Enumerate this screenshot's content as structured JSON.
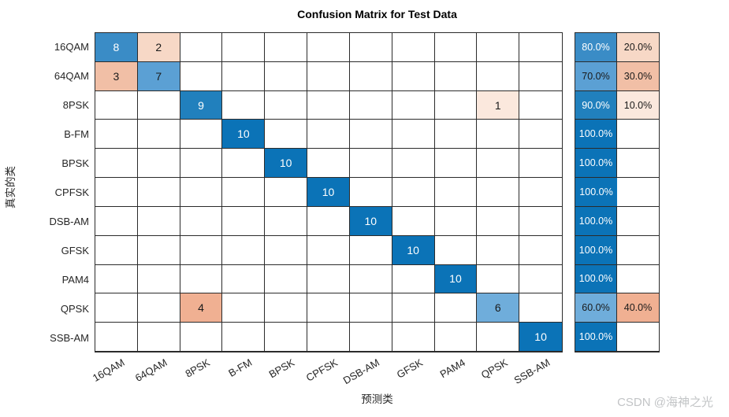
{
  "figure": {
    "watermark": "CSDN @海神之光"
  },
  "chart_data": {
    "type": "heatmap",
    "subtype": "confusion_matrix",
    "title": "Confusion Matrix for Test Data",
    "xlabel": "预测类",
    "ylabel": "真实的类",
    "legend_position": "none",
    "grid": true,
    "classes": [
      "16QAM",
      "64QAM",
      "8PSK",
      "B-FM",
      "BPSK",
      "CPFSK",
      "DSB-AM",
      "GFSK",
      "PAM4",
      "QPSK",
      "SSB-AM"
    ],
    "matrix": [
      [
        8,
        2,
        0,
        0,
        0,
        0,
        0,
        0,
        0,
        0,
        0
      ],
      [
        3,
        7,
        0,
        0,
        0,
        0,
        0,
        0,
        0,
        0,
        0
      ],
      [
        0,
        0,
        9,
        0,
        0,
        0,
        0,
        0,
        0,
        1,
        0
      ],
      [
        0,
        0,
        0,
        10,
        0,
        0,
        0,
        0,
        0,
        0,
        0
      ],
      [
        0,
        0,
        0,
        0,
        10,
        0,
        0,
        0,
        0,
        0,
        0
      ],
      [
        0,
        0,
        0,
        0,
        0,
        10,
        0,
        0,
        0,
        0,
        0
      ],
      [
        0,
        0,
        0,
        0,
        0,
        0,
        10,
        0,
        0,
        0,
        0
      ],
      [
        0,
        0,
        0,
        0,
        0,
        0,
        0,
        10,
        0,
        0,
        0
      ],
      [
        0,
        0,
        0,
        0,
        0,
        0,
        0,
        0,
        10,
        0,
        0
      ],
      [
        0,
        0,
        4,
        0,
        0,
        0,
        0,
        0,
        0,
        6,
        0
      ],
      [
        0,
        0,
        0,
        0,
        0,
        0,
        0,
        0,
        0,
        0,
        10
      ]
    ],
    "row_summary": [
      [
        "80.0%",
        "20.0%"
      ],
      [
        "70.0%",
        "30.0%"
      ],
      [
        "90.0%",
        "10.0%"
      ],
      [
        "100.0%",
        ""
      ],
      [
        "100.0%",
        ""
      ],
      [
        "100.0%",
        ""
      ],
      [
        "100.0%",
        ""
      ],
      [
        "100.0%",
        ""
      ],
      [
        "100.0%",
        ""
      ],
      [
        "60.0%",
        "40.0%"
      ],
      [
        "100.0%",
        ""
      ]
    ],
    "colors": {
      "diagonal": {
        "6": "#6FADDB",
        "7": "#5BA0D4",
        "8": "#3A8CC6",
        "9": "#2180BD",
        "10": "#0B73B7"
      },
      "off_diagonal": {
        "1": "#FBE8DD",
        "2": "#F7D8C6",
        "3": "#F1BFA6",
        "4": "#F0B092"
      },
      "white_text_values": [
        8,
        9,
        10
      ],
      "summary_correct": {
        "60.0%": "#6FADDB",
        "70.0%": "#5BA0D4",
        "80.0%": "#3A8CC6",
        "90.0%": "#2180BD",
        "100.0%": "#0B73B7"
      },
      "summary_incorrect": {
        "10.0%": "#FBE8DD",
        "20.0%": "#F7D8C6",
        "30.0%": "#F1BFA6",
        "40.0%": "#F0B092"
      },
      "summary_white_text": [
        "80.0%",
        "90.0%",
        "100.0%"
      ],
      "gridline": "#2b2b2b",
      "text_dark": "#1a1a1a",
      "text_light": "#ffffff"
    }
  }
}
